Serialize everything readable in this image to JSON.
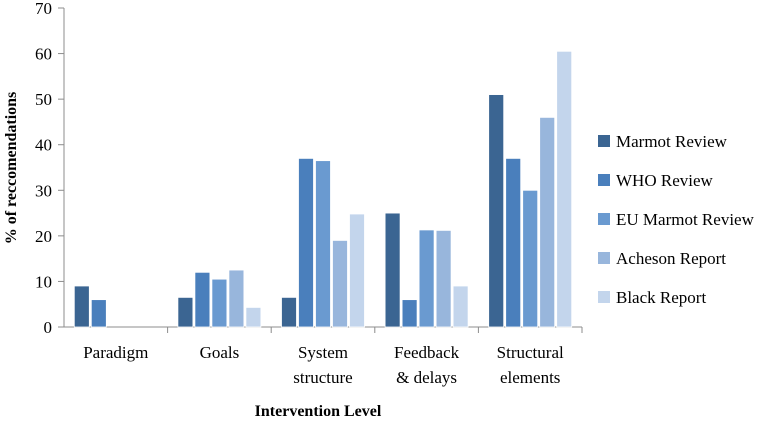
{
  "chart_data": {
    "type": "bar",
    "xlabel": "Intervention Level",
    "ylabel": "% of reccomendations",
    "ylim": [
      0,
      70
    ],
    "yticks": [
      0,
      10,
      20,
      30,
      40,
      50,
      60,
      70
    ],
    "grid": false,
    "legend_position": "right",
    "categories": [
      [
        "Paradigm"
      ],
      [
        "Goals"
      ],
      [
        "System",
        "structure"
      ],
      [
        "Feedback",
        "& delays"
      ],
      [
        "Structural",
        "elements"
      ]
    ],
    "series": [
      {
        "name": "Marmot Review",
        "color": "#3b6592",
        "values": [
          9,
          6.5,
          6.5,
          25,
          51
        ]
      },
      {
        "name": "WHO Review",
        "color": "#4a7fbc",
        "values": [
          6,
          12,
          37,
          6,
          37
        ]
      },
      {
        "name": "EU Marmot Review",
        "color": "#6a9ad0",
        "values": [
          0,
          10.5,
          36.5,
          21.3,
          30
        ]
      },
      {
        "name": "Acheson Report",
        "color": "#98b6dc",
        "values": [
          0,
          12.5,
          19,
          21.2,
          46
        ]
      },
      {
        "name": "Black Report",
        "color": "#c3d5ec",
        "values": [
          0,
          4.3,
          24.8,
          9,
          60.5
        ]
      }
    ]
  }
}
